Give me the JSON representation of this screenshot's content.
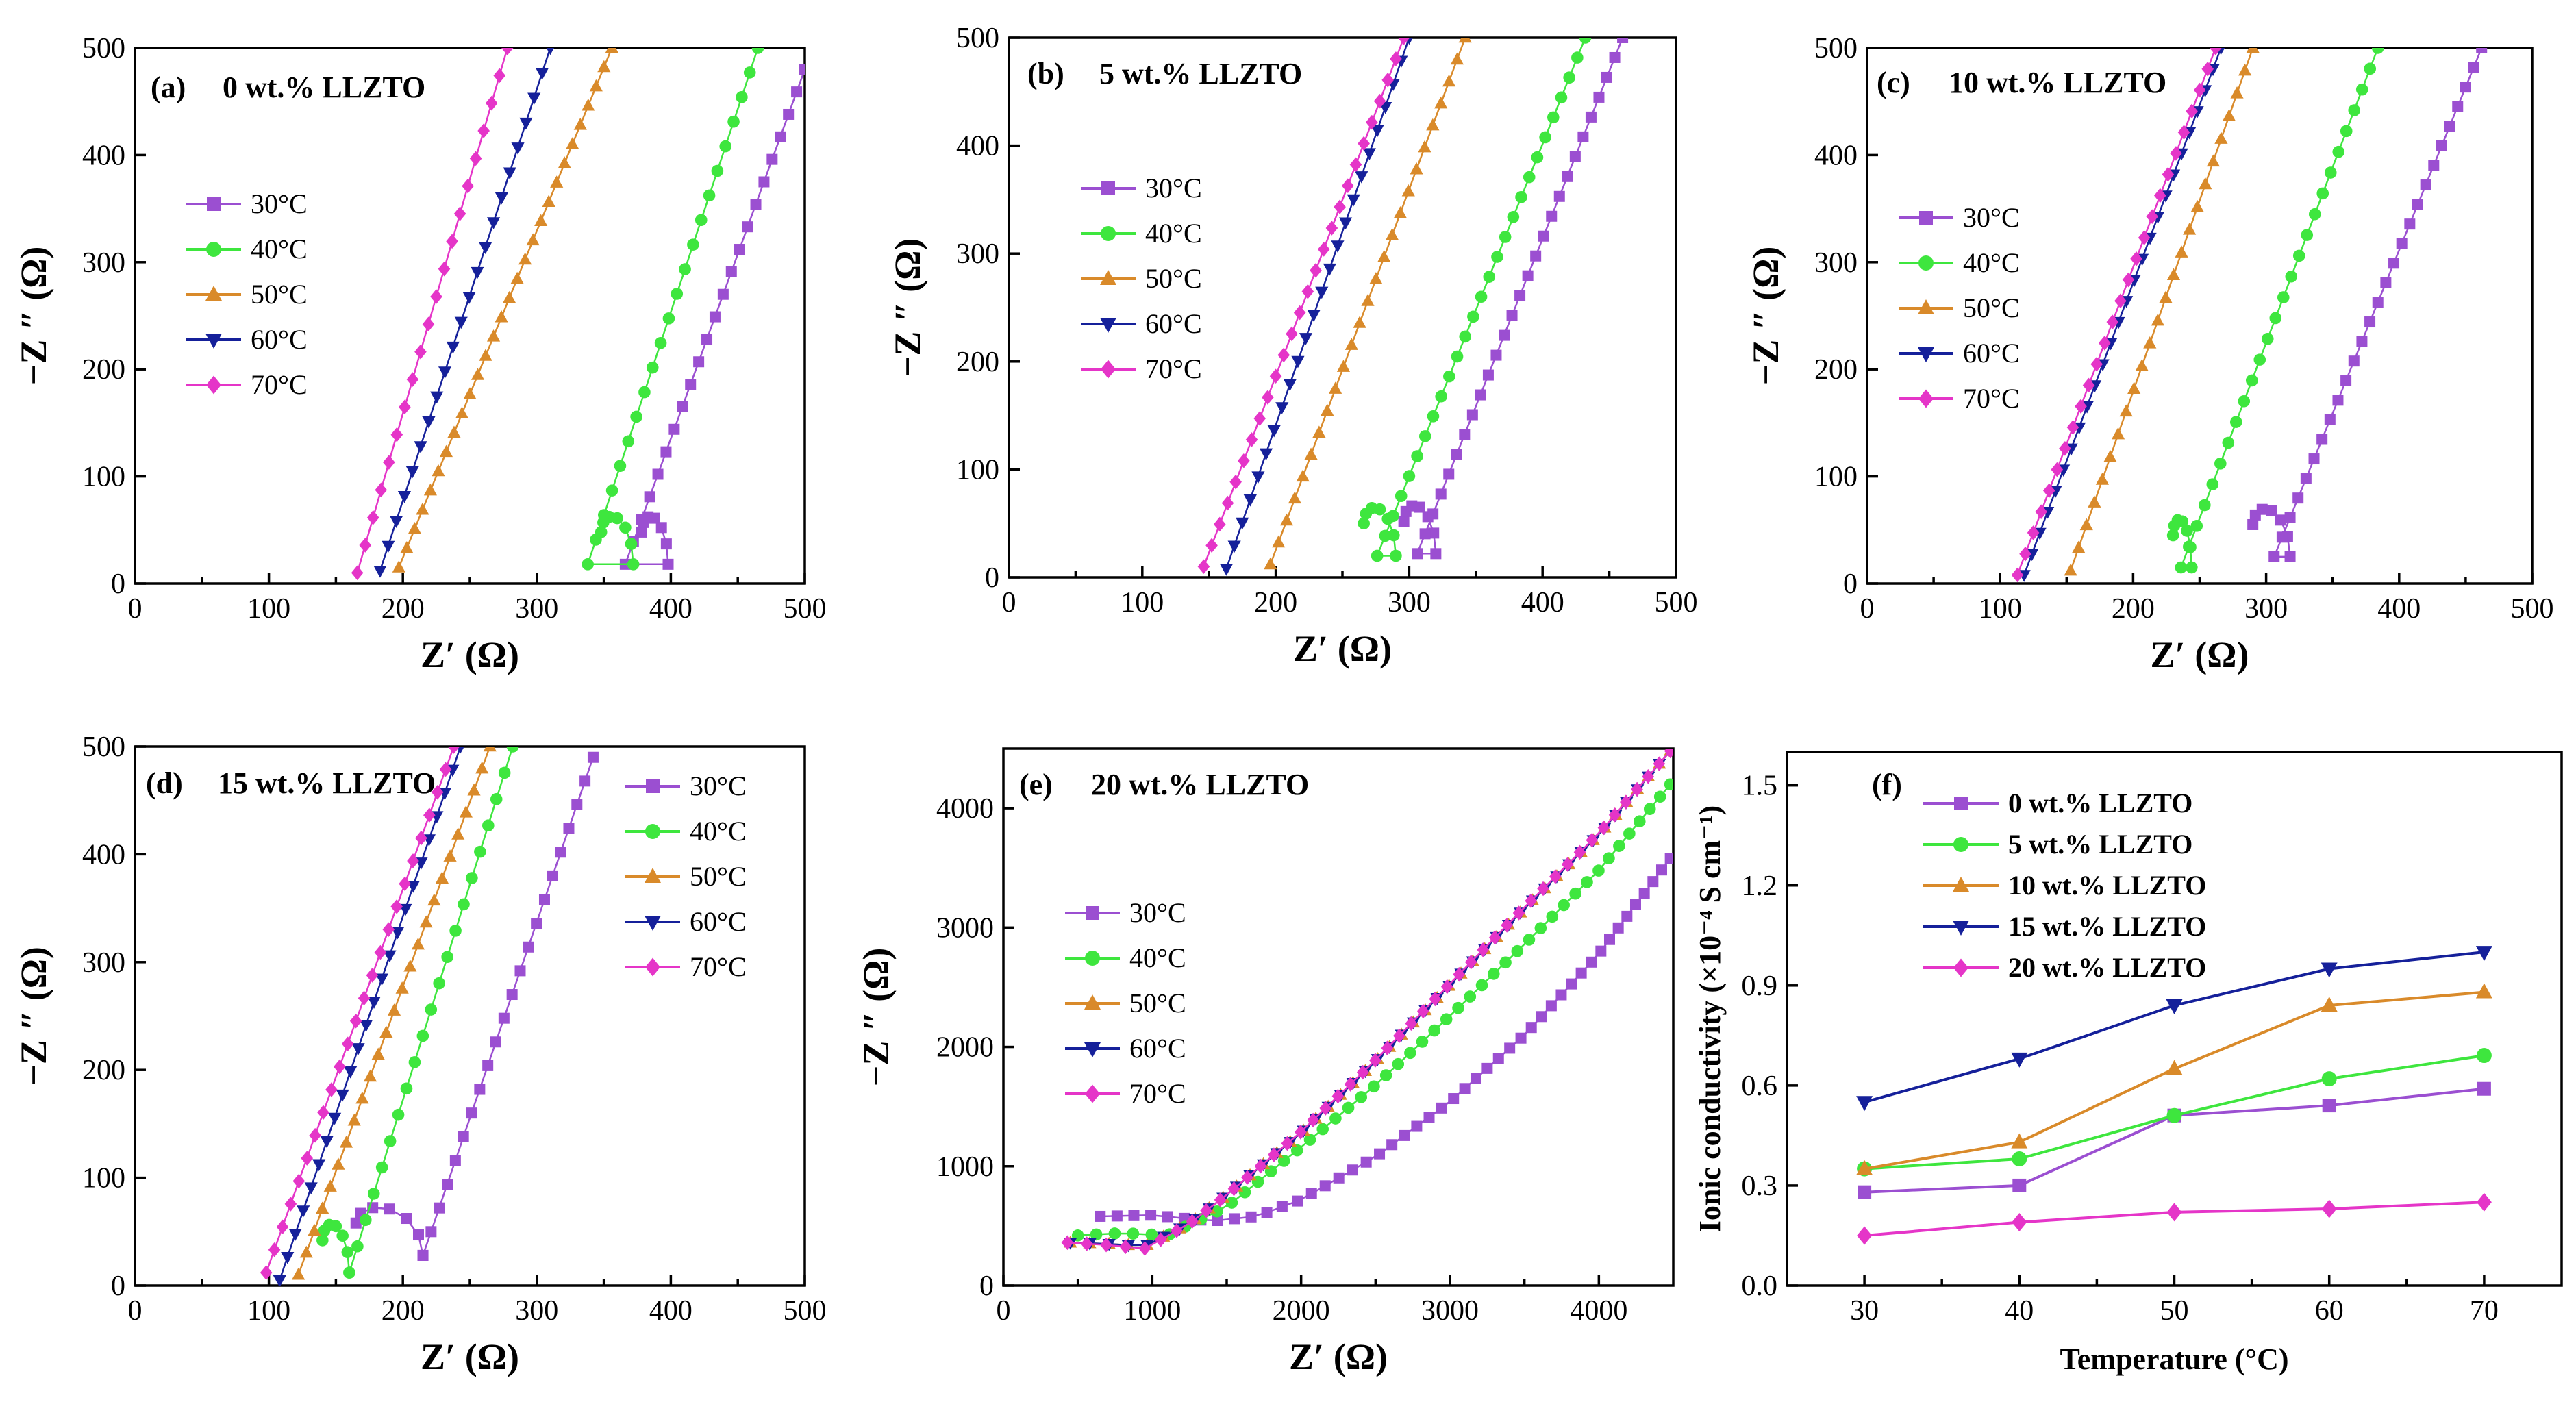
{
  "figure": {
    "series_colors": {
      "30": "#9B4FD1",
      "40": "#3EE63E",
      "50": "#D98A2A",
      "60": "#15209A",
      "70": "#E535C8"
    },
    "markers": {
      "30": "square",
      "40": "circle",
      "50": "triangle-up",
      "60": "triangle-down",
      "70": "diamond"
    }
  },
  "chart_data": [
    {
      "id": "a",
      "type": "scatter",
      "label": "(a)",
      "title": "0 wt.% LLZTO",
      "xlabel": "Z′ (Ω)",
      "ylabel": "−Z ″ (Ω)",
      "xlim": [
        0,
        500
      ],
      "ylim": [
        0,
        500
      ],
      "xticks": [
        0,
        100,
        200,
        300,
        400,
        500
      ],
      "yticks": [
        0,
        100,
        200,
        300,
        400,
        500
      ],
      "legend_position": "middle-left",
      "series": [
        {
          "name": "30",
          "legend": "30°C",
          "semi": {
            "start": 378,
            "r": 10
          },
          "line": [
            [
              366,
              18
            ],
            [
              500,
              480
            ]
          ]
        },
        {
          "name": "40",
          "legend": "40°C",
          "semi": {
            "start": 348,
            "r": 12
          },
          "line": [
            [
              338,
              18
            ],
            [
              465,
              500
            ]
          ]
        },
        {
          "name": "50",
          "legend": "50°C",
          "line": [
            [
              197,
              15
            ],
            [
              356,
              500
            ]
          ]
        },
        {
          "name": "60",
          "legend": "60°C",
          "line": [
            [
              183,
              12
            ],
            [
              310,
              500
            ]
          ]
        },
        {
          "name": "70",
          "legend": "70°C",
          "line": [
            [
              166,
              10
            ],
            [
              278,
              500
            ]
          ]
        }
      ]
    },
    {
      "id": "b",
      "type": "scatter",
      "label": "(b)",
      "title": "5 wt.% LLZTO",
      "xlabel": "Z′ (Ω)",
      "ylabel": "−Z ″ (Ω)",
      "xlim": [
        0,
        500
      ],
      "ylim": [
        0,
        500
      ],
      "xticks": [
        0,
        100,
        200,
        300,
        400,
        500
      ],
      "yticks": [
        0,
        100,
        200,
        300,
        400,
        500
      ],
      "legend_position": "middle-left",
      "series": [
        {
          "name": "30",
          "legend": "30°C",
          "semi": {
            "start": 296,
            "r": 12
          },
          "line": [
            [
              306,
              22
            ],
            [
              460,
              500
            ]
          ]
        },
        {
          "name": "40",
          "legend": "40°C",
          "semi": {
            "start": 266,
            "r": 12
          },
          "line": [
            [
              276,
              20
            ],
            [
              432,
              500
            ]
          ]
        },
        {
          "name": "50",
          "legend": "50°C",
          "line": [
            [
              196,
              12
            ],
            [
              342,
              500
            ]
          ]
        },
        {
          "name": "60",
          "legend": "60°C",
          "line": [
            [
              163,
              8
            ],
            [
              300,
              500
            ]
          ]
        },
        {
          "name": "70",
          "legend": "70°C",
          "line": [
            [
              146,
              10
            ],
            [
              296,
              500
            ]
          ]
        }
      ]
    },
    {
      "id": "c",
      "type": "scatter",
      "label": "(c)",
      "title": "10 wt.% LLZTO",
      "xlabel": "Z′ (Ω)",
      "ylabel": "−Z ″ (Ω)",
      "xlim": [
        0,
        500
      ],
      "ylim": [
        0,
        500
      ],
      "xticks": [
        0,
        100,
        200,
        300,
        400,
        500
      ],
      "yticks": [
        0,
        100,
        200,
        300,
        400,
        500
      ],
      "legend_position": "middle-left",
      "series": [
        {
          "name": "30",
          "legend": "30°C",
          "semi": {
            "start": 290,
            "r": 14
          },
          "line": [
            [
              306,
              25
            ],
            [
              462,
              500
            ]
          ]
        },
        {
          "name": "40",
          "legend": "40°C",
          "semi": {
            "start": 230,
            "r": 7
          },
          "line": [
            [
              236,
              15
            ],
            [
              384,
              500
            ]
          ]
        },
        {
          "name": "50",
          "legend": "50°C",
          "line": [
            [
              153,
              12
            ],
            [
              290,
              500
            ]
          ]
        },
        {
          "name": "60",
          "legend": "60°C",
          "line": [
            [
              118,
              8
            ],
            [
              266,
              500
            ]
          ]
        },
        {
          "name": "70",
          "legend": "70°C",
          "line": [
            [
              113,
              8
            ],
            [
              262,
              500
            ]
          ]
        }
      ]
    },
    {
      "id": "d",
      "type": "scatter",
      "label": "(d)",
      "title": "15 wt.% LLZTO",
      "xlabel": "Z′ (Ω)",
      "ylabel": "−Z ″ (Ω)",
      "xlim": [
        0,
        500
      ],
      "ylim": [
        0,
        500
      ],
      "xticks": [
        0,
        100,
        200,
        300,
        400,
        500
      ],
      "yticks": [
        0,
        100,
        200,
        300,
        400,
        500
      ],
      "legend_position": "top-right",
      "series": [
        {
          "name": "30",
          "legend": "30°C",
          "semi": {
            "start": 165,
            "r": 25
          },
          "line": [
            [
              215,
              28
            ],
            [
              342,
              490
            ]
          ]
        },
        {
          "name": "40",
          "legend": "40°C",
          "semi": {
            "start": 140,
            "r": 10
          },
          "line": [
            [
              160,
              12
            ],
            [
              282,
              500
            ]
          ]
        },
        {
          "name": "50",
          "legend": "50°C",
          "line": [
            [
              122,
              10
            ],
            [
              265,
              500
            ]
          ]
        },
        {
          "name": "60",
          "legend": "60°C",
          "line": [
            [
              108,
              5
            ],
            [
              243,
              500
            ]
          ]
        },
        {
          "name": "70",
          "legend": "70°C",
          "line": [
            [
              98,
              12
            ],
            [
              238,
              500
            ]
          ]
        }
      ]
    },
    {
      "id": "e",
      "type": "scatter",
      "label": "(e)",
      "title": "20 wt.% LLZTO",
      "xlabel": "Z′ (Ω)",
      "ylabel": "−Z ″ (Ω)",
      "xlim": [
        0,
        4500
      ],
      "ylim": [
        0,
        4500
      ],
      "xticks": [
        0,
        1000,
        2000,
        3000,
        4000
      ],
      "yticks": [
        0,
        1000,
        2000,
        3000,
        4000
      ],
      "legend_position": "middle-left",
      "series": [
        {
          "name": "30",
          "legend": "30°C",
          "curve": [
            [
              650,
              580
            ],
            [
              1000,
              590
            ],
            [
              1400,
              540
            ],
            [
              1700,
              580
            ],
            [
              2000,
              720
            ],
            [
              2500,
              1080
            ],
            [
              3000,
              1540
            ],
            [
              3500,
              2100
            ],
            [
              4000,
              2780
            ],
            [
              4480,
              3580
            ]
          ]
        },
        {
          "name": "40",
          "legend": "40°C",
          "curve": [
            [
              500,
              420
            ],
            [
              800,
              440
            ],
            [
              1100,
              420
            ],
            [
              1500,
              660
            ],
            [
              2000,
              1160
            ],
            [
              2500,
              1680
            ],
            [
              3000,
              2260
            ],
            [
              3500,
              2860
            ],
            [
              4000,
              3480
            ],
            [
              4480,
              4200
            ]
          ]
        },
        {
          "name": "50",
          "legend": "50°C",
          "curve": [
            [
              450,
              360
            ],
            [
              700,
              350
            ],
            [
              950,
              330
            ],
            [
              1250,
              520
            ],
            [
              1500,
              760
            ],
            [
              2000,
              1280
            ],
            [
              2500,
              1880
            ],
            [
              3000,
              2520
            ],
            [
              3500,
              3160
            ],
            [
              4000,
              3780
            ],
            [
              4480,
              4480
            ]
          ]
        },
        {
          "name": "60",
          "legend": "60°C",
          "curve": [
            [
              450,
              360
            ],
            [
              700,
              350
            ],
            [
              950,
              330
            ],
            [
              1250,
              520
            ],
            [
              1500,
              760
            ],
            [
              2000,
              1280
            ],
            [
              2500,
              1880
            ],
            [
              3000,
              2520
            ],
            [
              3500,
              3160
            ],
            [
              4000,
              3780
            ],
            [
              4480,
              4480
            ]
          ]
        },
        {
          "name": "70",
          "legend": "70°C",
          "curve": [
            [
              430,
              360
            ],
            [
              700,
              340
            ],
            [
              950,
              310
            ],
            [
              1250,
              520
            ],
            [
              1500,
              760
            ],
            [
              2000,
              1290
            ],
            [
              2500,
              1890
            ],
            [
              3000,
              2530
            ],
            [
              3500,
              3170
            ],
            [
              4000,
              3790
            ],
            [
              4480,
              4480
            ]
          ]
        }
      ]
    },
    {
      "id": "f",
      "type": "line",
      "label": "(f)",
      "title": "",
      "xlabel": "Temperature (°C)",
      "ylabel": "Ionic conductivity (×10⁻⁴ S cm⁻¹)",
      "xlim": [
        25,
        75
      ],
      "ylim": [
        0,
        1.6
      ],
      "xticks": [
        30,
        40,
        50,
        60,
        70
      ],
      "yticks": [
        0.0,
        0.3,
        0.6,
        0.9,
        1.2,
        1.5
      ],
      "ytick_labels": [
        "0.0",
        "0.3",
        "0.6",
        "0.9",
        "1.2",
        "1.5"
      ],
      "legend_position": "top-left",
      "x": [
        30,
        40,
        50,
        60,
        70
      ],
      "series": [
        {
          "name": "30",
          "legend": "0 wt.% LLZTO",
          "values": [
            0.28,
            0.3,
            0.51,
            0.54,
            0.59
          ]
        },
        {
          "name": "40",
          "legend": "5 wt.% LLZTO",
          "values": [
            0.35,
            0.38,
            0.51,
            0.62,
            0.69
          ]
        },
        {
          "name": "50",
          "legend": "10 wt.% LLZTO",
          "values": [
            0.35,
            0.43,
            0.65,
            0.84,
            0.88
          ]
        },
        {
          "name": "60",
          "legend": "15 wt.% LLZTO",
          "values": [
            0.55,
            0.68,
            0.84,
            0.95,
            1.0
          ]
        },
        {
          "name": "70",
          "legend": "20 wt.% LLZTO",
          "values": [
            0.15,
            0.19,
            0.22,
            0.23,
            0.25
          ]
        }
      ]
    }
  ]
}
